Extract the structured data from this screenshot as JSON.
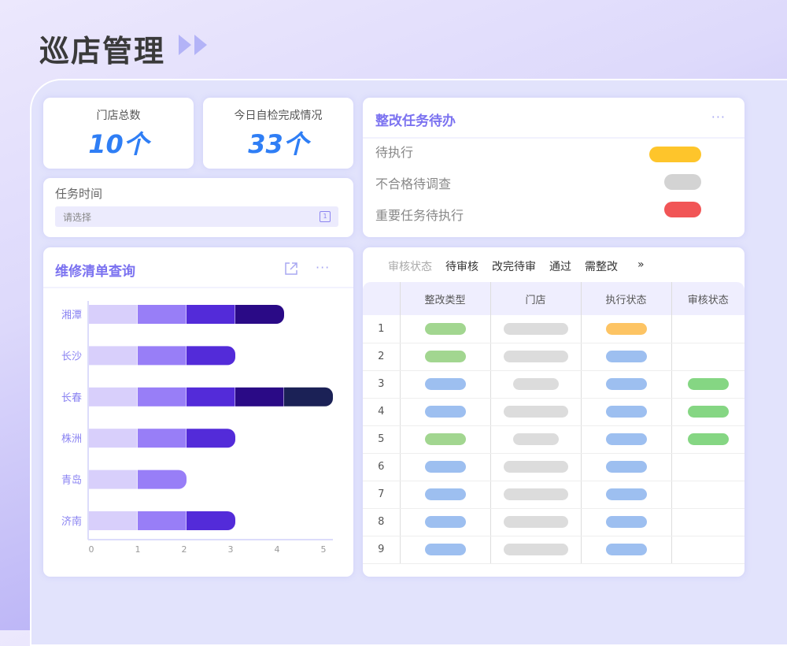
{
  "page_title": "巡店管理",
  "stats": [
    {
      "label": "门店总数",
      "value": "10个"
    },
    {
      "label": "今日自检完成情况",
      "value": "33个"
    }
  ],
  "task_time": {
    "label": "任务时间",
    "placeholder": "请选择",
    "icon": "calendar-icon"
  },
  "todo": {
    "title": "整改任务待办",
    "more": "···",
    "items": [
      {
        "label": "待执行",
        "color": "#fec52b"
      },
      {
        "label": "不合格待调查",
        "color": "#d3d3d3"
      },
      {
        "label": "重要任务待执行",
        "color": "#f15556"
      }
    ]
  },
  "repair": {
    "title": "维修清单查询",
    "more": "···",
    "share_icon": "share-icon"
  },
  "chart_data": {
    "type": "bar",
    "orientation": "horizontal",
    "stacked": true,
    "categories": [
      "湘潭",
      "长沙",
      "长春",
      "株洲",
      "青岛",
      "济南"
    ],
    "segment_colors": [
      "#d8cffb",
      "#987ef7",
      "#532bd9",
      "#2a0a86",
      "#1b2156"
    ],
    "segments": [
      [
        1,
        1,
        1,
        1
      ],
      [
        1,
        1,
        1
      ],
      [
        1,
        1,
        1,
        1,
        1
      ],
      [
        1,
        1,
        1
      ],
      [
        1,
        1
      ],
      [
        1,
        1,
        1
      ]
    ],
    "xlim": [
      0,
      5
    ],
    "xticks": [
      "0",
      "1",
      "2",
      "3",
      "4",
      "5"
    ]
  },
  "audit": {
    "filter_label": "审核状态",
    "tabs": [
      "待审核",
      "改完待审",
      "通过",
      "需整改"
    ],
    "more_tabs": "»",
    "columns": [
      "",
      "整改类型",
      "门店",
      "执行状态",
      "审核状态"
    ],
    "colors": {
      "green": "#a2d690",
      "blue": "#9dbff0",
      "gray": "#dcdcdc",
      "orange": "#fdc464",
      "audit_green": "#85d683"
    },
    "rows": [
      {
        "no": "1",
        "type": "green",
        "store": "long",
        "exec": "orange",
        "audit": ""
      },
      {
        "no": "2",
        "type": "green",
        "store": "long",
        "exec": "blue",
        "audit": ""
      },
      {
        "no": "3",
        "type": "blue",
        "store": "short",
        "exec": "blue",
        "audit": "audit_green"
      },
      {
        "no": "4",
        "type": "blue",
        "store": "long",
        "exec": "blue",
        "audit": "audit_green"
      },
      {
        "no": "5",
        "type": "green",
        "store": "short",
        "exec": "blue",
        "audit": "audit_green"
      },
      {
        "no": "6",
        "type": "blue",
        "store": "long",
        "exec": "blue",
        "audit": ""
      },
      {
        "no": "7",
        "type": "blue",
        "store": "long",
        "exec": "blue",
        "audit": ""
      },
      {
        "no": "8",
        "type": "blue",
        "store": "long",
        "exec": "blue",
        "audit": ""
      },
      {
        "no": "9",
        "type": "blue",
        "store": "long",
        "exec": "blue",
        "audit": ""
      }
    ]
  }
}
